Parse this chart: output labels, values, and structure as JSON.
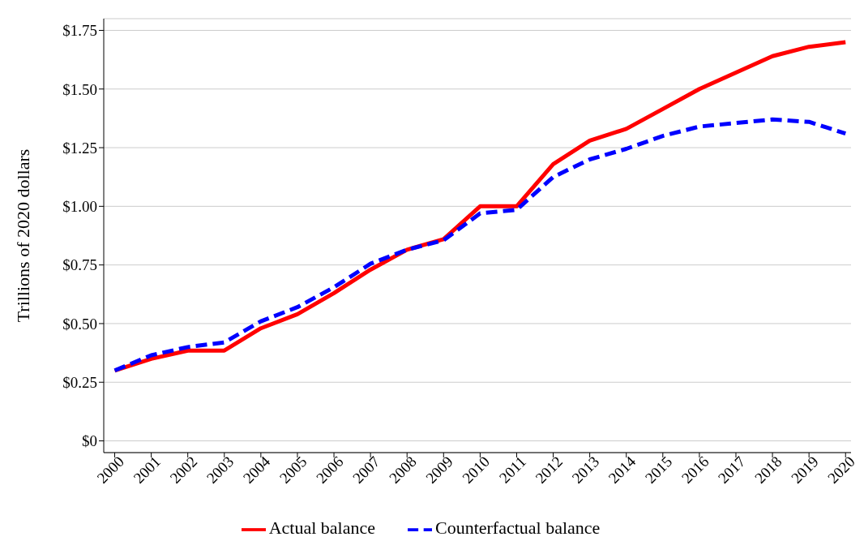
{
  "chart_data": {
    "type": "line",
    "ylabel": "Trillions of 2020 dollars",
    "categories": [
      "2000",
      "2001",
      "2002",
      "2003",
      "2004",
      "2005",
      "2006",
      "2007",
      "2008",
      "2009",
      "2010",
      "2011",
      "2012",
      "2013",
      "2014",
      "2015",
      "2016",
      "2017",
      "2018",
      "2019",
      "2020"
    ],
    "series": [
      {
        "name": "Actual balance",
        "color": "#ff0000",
        "line_style": "solid",
        "values": [
          0.3,
          0.35,
          0.385,
          0.385,
          0.48,
          0.54,
          0.63,
          0.73,
          0.815,
          0.86,
          1.0,
          1.0,
          1.18,
          1.28,
          1.33,
          1.415,
          1.5,
          1.57,
          1.64,
          1.68,
          1.7
        ]
      },
      {
        "name": "Counterfactual balance",
        "color": "#0000ff",
        "line_style": "dashed",
        "values": [
          0.3,
          0.365,
          0.4,
          0.42,
          0.51,
          0.57,
          0.655,
          0.755,
          0.815,
          0.855,
          0.97,
          0.985,
          1.125,
          1.2,
          1.245,
          1.3,
          1.34,
          1.355,
          1.37,
          1.36,
          1.31
        ]
      }
    ],
    "ylim": [
      -0.05,
      1.8
    ],
    "yticks": [
      {
        "value": 0,
        "label": "$0"
      },
      {
        "value": 0.25,
        "label": "$0.25"
      },
      {
        "value": 0.5,
        "label": "$0.50"
      },
      {
        "value": 0.75,
        "label": "$0.75"
      },
      {
        "value": 1,
        "label": "$1.00"
      },
      {
        "value": 1.25,
        "label": "$1.25"
      },
      {
        "value": 1.5,
        "label": "$1.50"
      },
      {
        "value": 1.75,
        "label": "$1.75"
      }
    ],
    "grid": "y",
    "legend": "bottom",
    "marker": "none"
  }
}
